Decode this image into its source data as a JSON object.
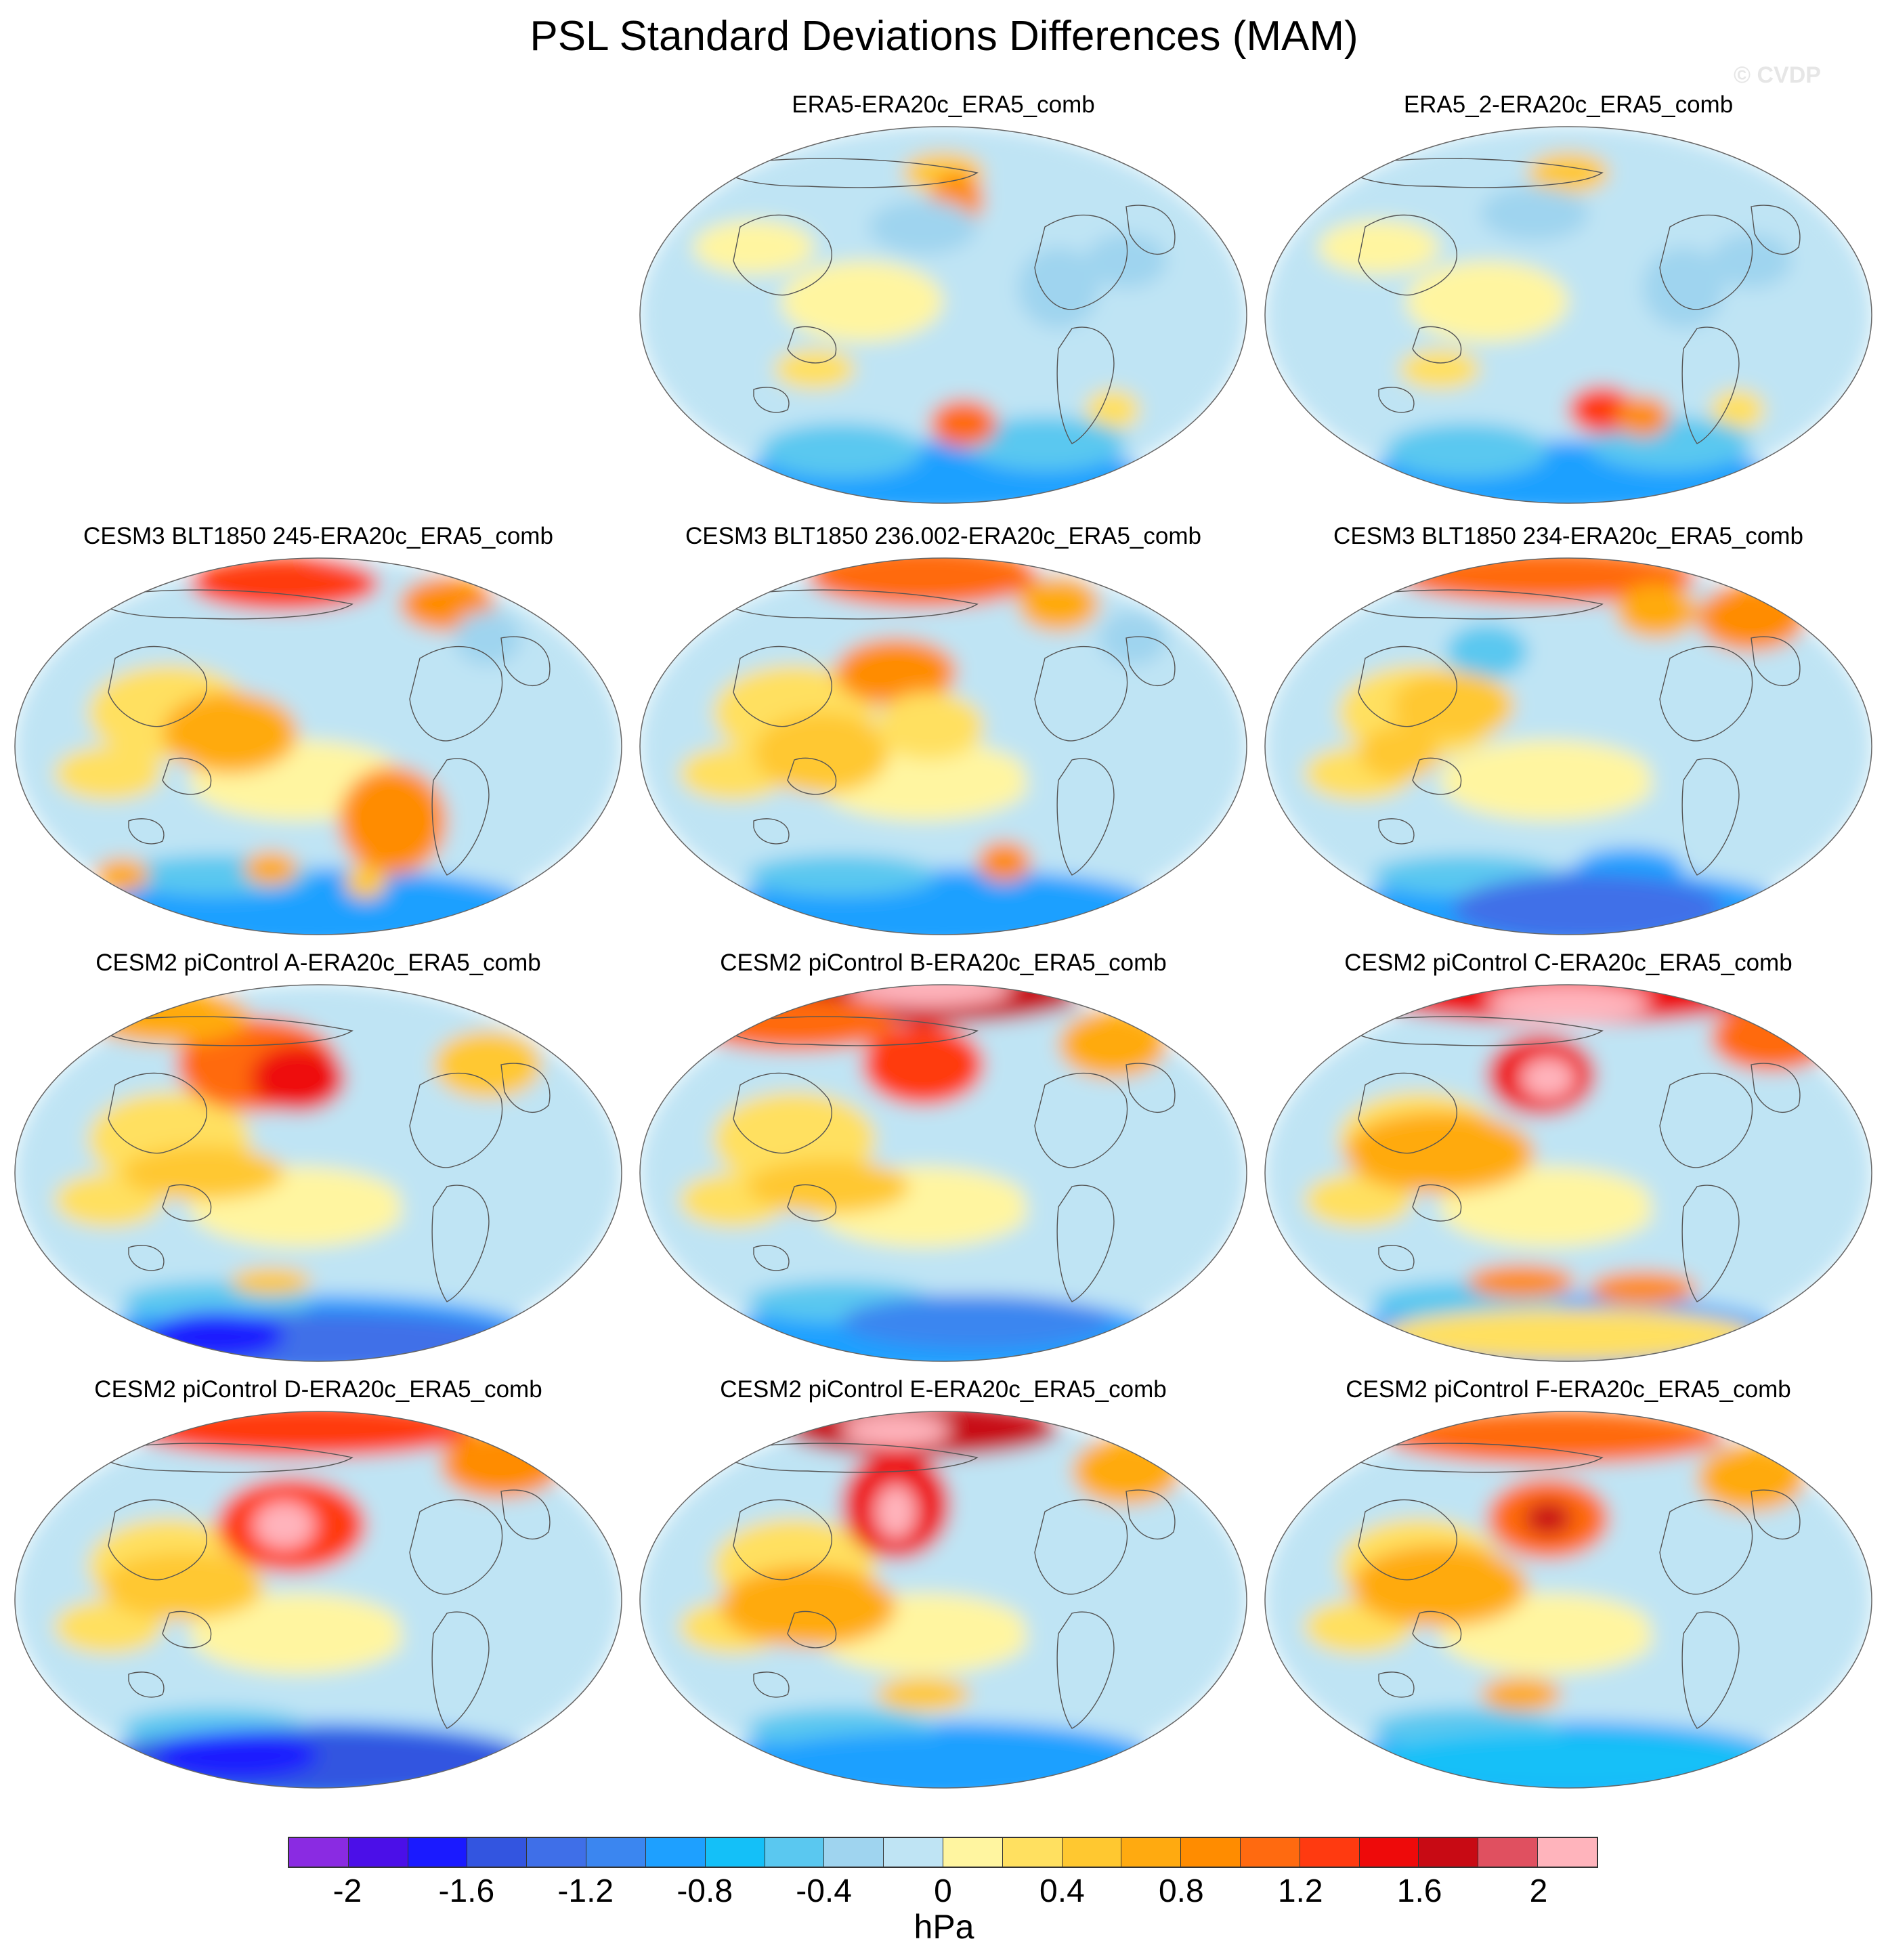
{
  "title": "PSL Standard Deviations Differences (MAM)",
  "watermark": "© CVDP",
  "panels": [
    {
      "label": "ERA5-ERA20c_ERA5_comb",
      "pattern": "obs1"
    },
    {
      "label": "ERA5_2-ERA20c_ERA5_comb",
      "pattern": "obs2"
    },
    {
      "label": "CESM3 BLT1850 245-ERA20c_ERA5_comb",
      "pattern": "m1"
    },
    {
      "label": "CESM3 BLT1850 236.002-ERA20c_ERA5_comb",
      "pattern": "m2"
    },
    {
      "label": "CESM3 BLT1850 234-ERA20c_ERA5_comb",
      "pattern": "m3"
    },
    {
      "label": "CESM2 piControl A-ERA20c_ERA5_comb",
      "pattern": "cA"
    },
    {
      "label": "CESM2 piControl B-ERA20c_ERA5_comb",
      "pattern": "cB"
    },
    {
      "label": "CESM2 piControl C-ERA20c_ERA5_comb",
      "pattern": "cC"
    },
    {
      "label": "CESM2 piControl D-ERA20c_ERA5_comb",
      "pattern": "cD"
    },
    {
      "label": "CESM2 piControl E-ERA20c_ERA5_comb",
      "pattern": "cE"
    },
    {
      "label": "CESM2 piControl F-ERA20c_ERA5_comb",
      "pattern": "cF"
    }
  ],
  "colorbar": {
    "colors": [
      "#8a2be2",
      "#4b0fe8",
      "#1a1aff",
      "#3355e0",
      "#3f6fe8",
      "#3b86f0",
      "#1ea0ff",
      "#14c0f8",
      "#5ac8f0",
      "#9fd4ef",
      "#bfe4f4",
      "#fff5a0",
      "#ffe060",
      "#ffc830",
      "#ffaa10",
      "#ff8c00",
      "#ff6a10",
      "#ff3a10",
      "#ee0a0a",
      "#c80a14",
      "#e05060",
      "#ffb4bc"
    ],
    "labels": [
      "-2",
      "-1.6",
      "-1.2",
      "-0.8",
      "-0.4",
      "0",
      "0.4",
      "0.8",
      "1.2",
      "1.6",
      "2"
    ],
    "units": "hPa"
  }
}
